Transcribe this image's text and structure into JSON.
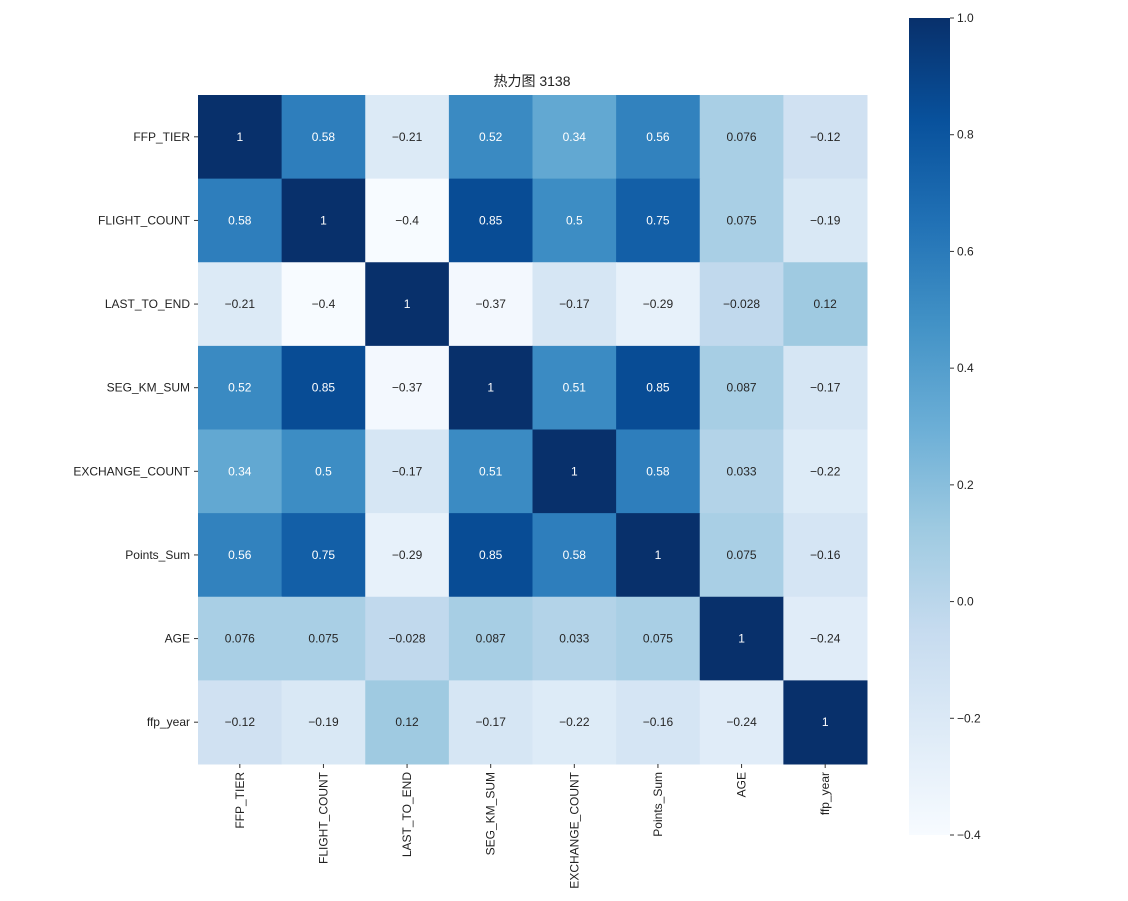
{
  "chart_data": {
    "type": "heatmap",
    "title": "热力图 3138",
    "xlabel": "",
    "ylabel": "",
    "x_labels": [
      "FFP_TIER",
      "FLIGHT_COUNT",
      "LAST_TO_END",
      "SEG_KM_SUM",
      "EXCHANGE_COUNT",
      "Points_Sum",
      "AGE",
      "ffp_year"
    ],
    "y_labels": [
      "FFP_TIER",
      "FLIGHT_COUNT",
      "LAST_TO_END",
      "SEG_KM_SUM",
      "EXCHANGE_COUNT",
      "Points_Sum",
      "AGE",
      "ffp_year"
    ],
    "values": [
      [
        1,
        0.58,
        -0.21,
        0.52,
        0.34,
        0.56,
        0.076,
        -0.12
      ],
      [
        0.58,
        1,
        -0.4,
        0.85,
        0.5,
        0.75,
        0.075,
        -0.19
      ],
      [
        -0.21,
        -0.4,
        1,
        -0.37,
        -0.17,
        -0.29,
        -0.028,
        0.12
      ],
      [
        0.52,
        0.85,
        -0.37,
        1,
        0.51,
        0.85,
        0.087,
        -0.17
      ],
      [
        0.34,
        0.5,
        -0.17,
        0.51,
        1,
        0.58,
        0.033,
        -0.22
      ],
      [
        0.56,
        0.75,
        -0.29,
        0.85,
        0.58,
        1,
        0.075,
        -0.16
      ],
      [
        0.076,
        0.075,
        -0.028,
        0.087,
        0.033,
        0.075,
        1,
        -0.24
      ],
      [
        -0.12,
        -0.19,
        0.12,
        -0.17,
        -0.22,
        -0.16,
        -0.24,
        1
      ]
    ],
    "colormap": "Blues",
    "vmin": -0.4,
    "vmax": 1.0,
    "colorbar_ticks": [
      "1.0",
      "0.8",
      "0.6",
      "0.4",
      "0.2",
      "0.0",
      "-0.2",
      "-0.4"
    ],
    "colorbar_tick_values": [
      1.0,
      0.8,
      0.6,
      0.4,
      0.2,
      0.0,
      -0.2,
      -0.4
    ],
    "colorbar_placement": "right",
    "annotated": true
  }
}
